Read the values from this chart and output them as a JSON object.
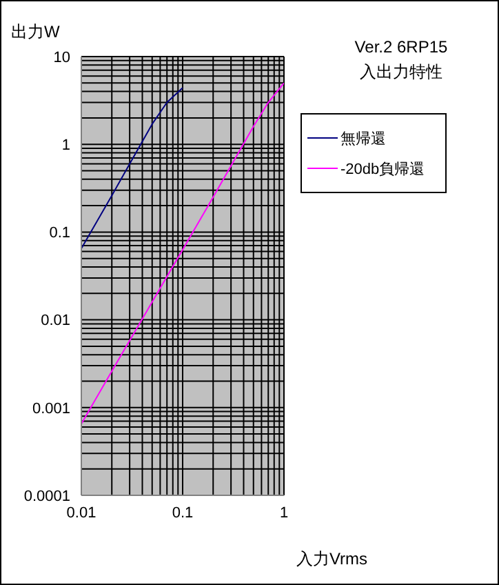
{
  "chart_data": {
    "type": "line",
    "title": "Ver.2 6RP15",
    "subtitle": "入出力特性",
    "xlabel": "入力Vrms",
    "ylabel": "出力W",
    "log": "xy",
    "grid": true,
    "legend": "right",
    "marker": "none",
    "line_style": "solid",
    "xlim": [
      0.01,
      1
    ],
    "ylim": [
      0.0001,
      10
    ],
    "xticks": [
      0.01,
      {
        "value": 0.02,
        "label": null
      },
      {
        "value": 0.03,
        "label": null
      },
      {
        "value": 0.04,
        "label": null
      },
      {
        "value": 0.05,
        "label": null
      },
      {
        "value": 0.06,
        "label": null
      },
      {
        "value": 0.07,
        "label": null
      },
      {
        "value": 0.08,
        "label": null
      },
      {
        "value": 0.09,
        "label": null
      },
      0.1,
      {
        "value": 0.2,
        "label": null
      },
      {
        "value": 0.3,
        "label": null
      },
      {
        "value": 0.4,
        "label": null
      },
      {
        "value": 0.5,
        "label": null
      },
      {
        "value": 0.6,
        "label": null
      },
      {
        "value": 0.7,
        "label": null
      },
      {
        "value": 0.8,
        "label": null
      },
      {
        "value": 0.9,
        "label": null
      },
      1
    ],
    "yticks": [
      0.0001,
      {
        "value": 0.0002,
        "label": null
      },
      {
        "value": 0.0003,
        "label": null
      },
      {
        "value": 0.0004,
        "label": null
      },
      {
        "value": 0.0005,
        "label": null
      },
      {
        "value": 0.0006,
        "label": null
      },
      {
        "value": 0.0007,
        "label": null
      },
      {
        "value": 0.0008,
        "label": null
      },
      {
        "value": 0.0009,
        "label": null
      },
      0.001,
      {
        "value": 0.002,
        "label": null
      },
      {
        "value": 0.003,
        "label": null
      },
      {
        "value": 0.004,
        "label": null
      },
      {
        "value": 0.005,
        "label": null
      },
      {
        "value": 0.006,
        "label": null
      },
      {
        "value": 0.007,
        "label": null
      },
      {
        "value": 0.008,
        "label": null
      },
      {
        "value": 0.009,
        "label": null
      },
      0.01,
      {
        "value": 0.02,
        "label": null
      },
      {
        "value": 0.03,
        "label": null
      },
      {
        "value": 0.04,
        "label": null
      },
      {
        "value": 0.05,
        "label": null
      },
      {
        "value": 0.06,
        "label": null
      },
      {
        "value": 0.07,
        "label": null
      },
      {
        "value": 0.08,
        "label": null
      },
      {
        "value": 0.09,
        "label": null
      },
      0.1,
      {
        "value": 0.2,
        "label": null
      },
      {
        "value": 0.3,
        "label": null
      },
      {
        "value": 0.4,
        "label": null
      },
      {
        "value": 0.5,
        "label": null
      },
      {
        "value": 0.6,
        "label": null
      },
      {
        "value": 0.7,
        "label": null
      },
      {
        "value": 0.8,
        "label": null
      },
      {
        "value": 0.9,
        "label": null
      },
      1,
      {
        "value": 2,
        "label": null
      },
      {
        "value": 3,
        "label": null
      },
      {
        "value": 4,
        "label": null
      },
      {
        "value": 5,
        "label": null
      },
      {
        "value": 6,
        "label": null
      },
      {
        "value": 7,
        "label": null
      },
      {
        "value": 8,
        "label": null
      },
      {
        "value": 9,
        "label": null
      },
      10
    ],
    "series": [
      {
        "name": "無帰還",
        "color": "#000080",
        "x": [
          0.01,
          0.02,
          0.03,
          0.05,
          0.07,
          0.1
        ],
        "values": [
          0.065,
          0.26,
          0.6,
          1.7,
          3.0,
          4.4
        ]
      },
      {
        "name": "-20db負帰還",
        "color": "#ff00ff",
        "x": [
          0.01,
          0.02,
          0.05,
          0.1,
          0.2,
          0.5,
          0.7,
          1
        ],
        "values": [
          0.00065,
          0.0026,
          0.016,
          0.063,
          0.25,
          1.6,
          3.0,
          5.0
        ]
      }
    ]
  }
}
